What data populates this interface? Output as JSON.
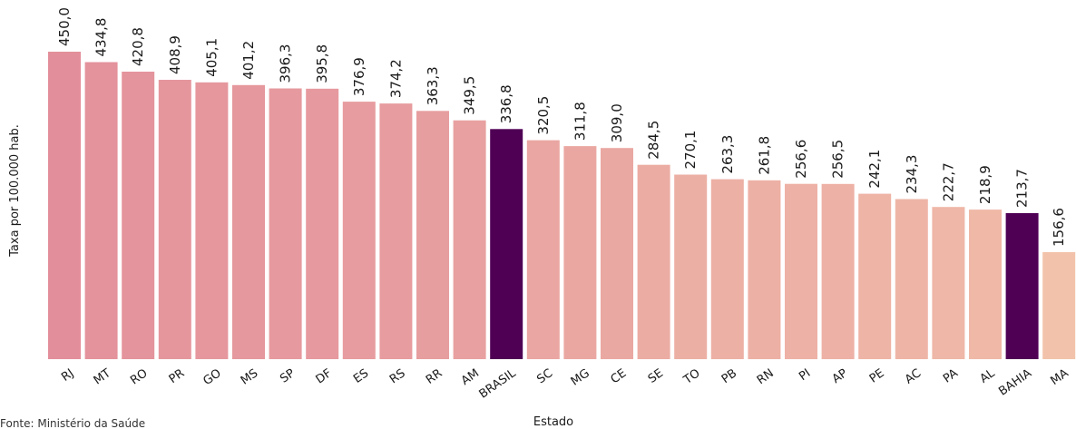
{
  "chart_data": {
    "type": "bar",
    "xlabel": "Estado",
    "ylabel": "Taxa por 100.000 hab.",
    "source": "Fonte: Ministério da Saúde",
    "ylim": [
      0,
      470
    ],
    "grid": false,
    "categories": [
      "RJ",
      "MT",
      "RO",
      "PR",
      "GO",
      "MS",
      "SP",
      "DF",
      "ES",
      "RS",
      "RR",
      "AM",
      "BRASIL",
      "SC",
      "MG",
      "CE",
      "SE",
      "TO",
      "PB",
      "RN",
      "PI",
      "AP",
      "PE",
      "AC",
      "PA",
      "AL",
      "BAHIA",
      "MA"
    ],
    "values": [
      450.0,
      434.8,
      420.8,
      408.9,
      405.1,
      401.2,
      396.3,
      395.8,
      376.9,
      374.2,
      363.3,
      349.5,
      336.8,
      320.5,
      311.8,
      309.0,
      284.5,
      270.1,
      263.3,
      261.8,
      256.6,
      256.5,
      242.1,
      234.3,
      222.7,
      218.9,
      213.7,
      156.6
    ],
    "value_labels": [
      "450,0",
      "434,8",
      "420,8",
      "408,9",
      "405,1",
      "401,2",
      "396,3",
      "395,8",
      "376,9",
      "374,2",
      "363,3",
      "349,5",
      "336,8",
      "320,5",
      "311,8",
      "309,0",
      "284,5",
      "270,1",
      "263,3",
      "261,8",
      "256,6",
      "256,5",
      "242,1",
      "234,3",
      "222,7",
      "218,9",
      "213,7",
      "156,6"
    ],
    "highlight": [
      "BRASIL",
      "BAHIA"
    ],
    "colors": {
      "highlight": "#4f0055",
      "scale_high": "#e38f9b",
      "scale_low": "#f2c3aa"
    }
  }
}
